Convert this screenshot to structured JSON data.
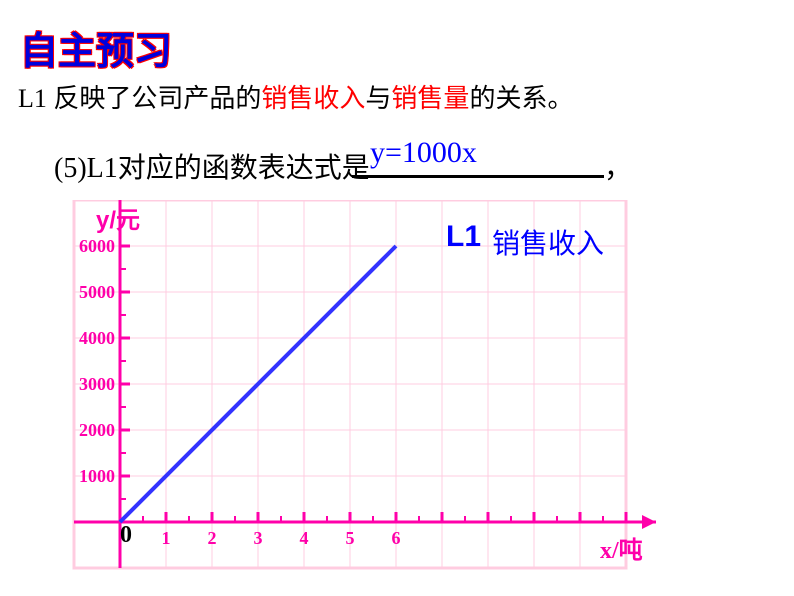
{
  "heading": "自主预习",
  "line1_parts": {
    "p1": "L1 反映了公司产品的",
    "p2": "销售收入",
    "p3": "与",
    "p4": "销售量",
    "p5": "的关系。"
  },
  "line2": "(5)L1对应的函数表达式是",
  "answer": "y=1000x",
  "comma": "，",
  "chart": {
    "y_axis_label": "y/元",
    "x_axis_label": "x/吨",
    "origin_label": "0",
    "l1_label": "L1",
    "revenue_label": "销售收入",
    "y_ticks": [
      "1000",
      "2000",
      "3000",
      "4000",
      "5000",
      "6000"
    ],
    "x_ticks": [
      "1",
      "2",
      "3",
      "4",
      "5",
      "6"
    ],
    "grid_color": "#ffcce0",
    "axis_color": "#ff00aa",
    "line_color": "#3333ff",
    "line_width": 4,
    "grid_cols": 10,
    "grid_rows": 7,
    "cell": 46,
    "origin_x": 60,
    "origin_y": 322,
    "line_points": [
      [
        60,
        322
      ],
      [
        336,
        46
      ]
    ]
  }
}
